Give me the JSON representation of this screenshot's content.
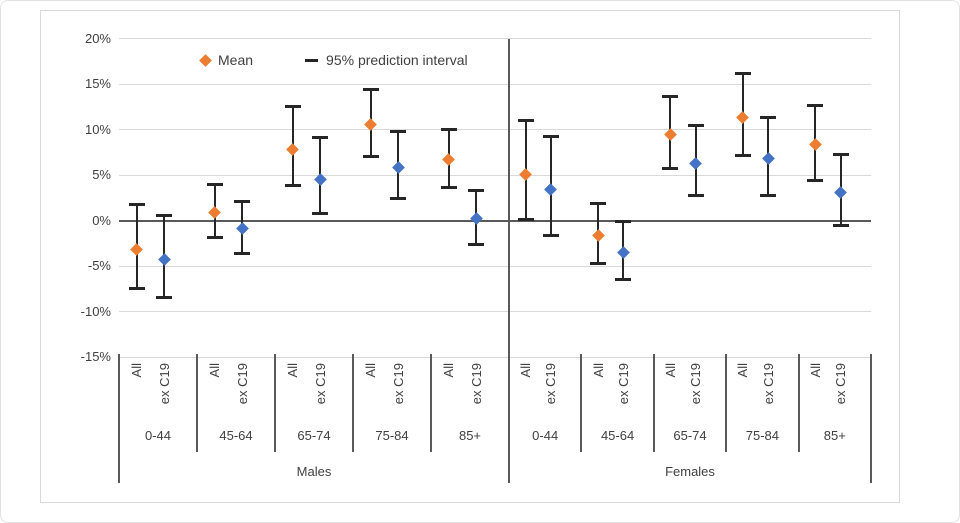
{
  "chart_data": {
    "type": "scatter",
    "title": "",
    "legend": [
      {
        "label": "Mean",
        "marker": "diamond",
        "color": "#ED7D31"
      },
      {
        "label": "95% prediction interval",
        "marker": "dash",
        "color": "#262626"
      }
    ],
    "y_axis": {
      "tick_labels": [
        "20%",
        "15%",
        "10%",
        "5%",
        "0%",
        "-5%",
        "-10%",
        "-15%"
      ],
      "tick_values": [
        20,
        15,
        10,
        5,
        0,
        -5,
        -10,
        -15
      ],
      "ylim": [
        -15,
        20
      ],
      "unit": "%",
      "grid": true
    },
    "series_labels": [
      "All",
      "ex C19"
    ],
    "colors": {
      "mean_all": "#ED7D31",
      "mean_ex_c19": "#4472C4",
      "error_bar": "#262626",
      "gridline": "#D9D9D9",
      "axis": "#595959",
      "text": "#404040"
    },
    "groups": [
      {
        "gender": "Males",
        "ages": [
          {
            "age": "0-44",
            "points": [
              {
                "series": "All",
                "mean": -3.2,
                "lo": -7.5,
                "hi": 1.8
              },
              {
                "series": "ex C19",
                "mean": -4.3,
                "lo": -8.5,
                "hi": 0.6
              }
            ]
          },
          {
            "age": "45-64",
            "points": [
              {
                "series": "All",
                "mean": 0.9,
                "lo": -1.9,
                "hi": 4.0
              },
              {
                "series": "ex C19",
                "mean": -0.9,
                "lo": -3.6,
                "hi": 2.1
              }
            ]
          },
          {
            "age": "65-74",
            "points": [
              {
                "series": "All",
                "mean": 7.8,
                "lo": 3.9,
                "hi": 12.5
              },
              {
                "series": "ex C19",
                "mean": 4.5,
                "lo": 0.8,
                "hi": 9.1
              }
            ]
          },
          {
            "age": "75-84",
            "points": [
              {
                "series": "All",
                "mean": 10.5,
                "lo": 7.0,
                "hi": 14.4
              },
              {
                "series": "ex C19",
                "mean": 5.8,
                "lo": 2.4,
                "hi": 9.8
              }
            ]
          },
          {
            "age": "85+",
            "points": [
              {
                "series": "All",
                "mean": 6.7,
                "lo": 3.6,
                "hi": 10.0
              },
              {
                "series": "ex C19",
                "mean": 0.2,
                "lo": -2.6,
                "hi": 3.3
              }
            ]
          }
        ]
      },
      {
        "gender": "Females",
        "ages": [
          {
            "age": "0-44",
            "points": [
              {
                "series": "All",
                "mean": 5.1,
                "lo": 0.1,
                "hi": 11.0
              },
              {
                "series": "ex C19",
                "mean": 3.4,
                "lo": -1.7,
                "hi": 9.2
              }
            ]
          },
          {
            "age": "45-64",
            "points": [
              {
                "series": "All",
                "mean": -1.6,
                "lo": -4.7,
                "hi": 1.9
              },
              {
                "series": "ex C19",
                "mean": -3.5,
                "lo": -6.5,
                "hi": -0.1
              }
            ]
          },
          {
            "age": "65-74",
            "points": [
              {
                "series": "All",
                "mean": 9.5,
                "lo": 5.7,
                "hi": 13.6
              },
              {
                "series": "ex C19",
                "mean": 6.3,
                "lo": 2.8,
                "hi": 10.4
              }
            ]
          },
          {
            "age": "75-84",
            "points": [
              {
                "series": "All",
                "mean": 11.3,
                "lo": 7.1,
                "hi": 16.1
              },
              {
                "series": "ex C19",
                "mean": 6.8,
                "lo": 2.7,
                "hi": 11.3
              }
            ]
          },
          {
            "age": "85+",
            "points": [
              {
                "series": "All",
                "mean": 8.3,
                "lo": 4.4,
                "hi": 12.6
              },
              {
                "series": "ex C19",
                "mean": 3.1,
                "lo": -0.6,
                "hi": 7.2
              }
            ]
          }
        ]
      }
    ]
  }
}
